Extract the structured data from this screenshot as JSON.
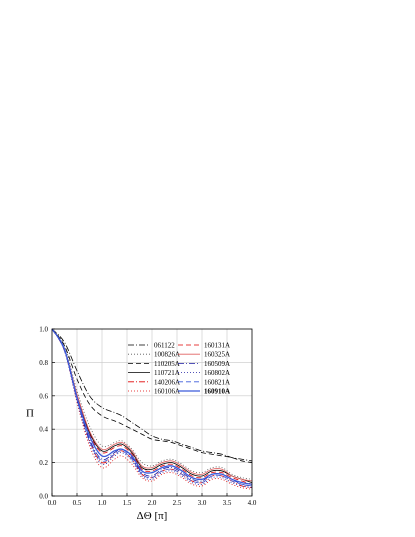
{
  "chart_data": {
    "type": "line",
    "title": "",
    "xlabel": "ΔΘ [π]",
    "ylabel": "Π",
    "xlim": [
      0.0,
      4.0
    ],
    "ylim": [
      0.0,
      1.0
    ],
    "xticks": [
      "0.0",
      "0.5",
      "1.0",
      "1.5",
      "2.0",
      "2.5",
      "3.0",
      "3.5",
      "4.0"
    ],
    "yticks": [
      "0.0",
      "0.2",
      "0.4",
      "0.6",
      "0.8",
      "1.0"
    ],
    "grid": true,
    "legend_position": "top-right",
    "x": [
      0.0,
      0.25,
      0.5,
      0.75,
      1.0,
      1.25,
      1.4,
      1.6,
      1.8,
      2.0,
      2.2,
      2.4,
      2.6,
      2.8,
      3.0,
      3.2,
      3.4,
      3.6,
      3.8,
      4.0
    ],
    "series": [
      {
        "name": "061122",
        "color": "#000000",
        "dash": "6,2,1,2",
        "values": [
          1.0,
          0.92,
          0.75,
          0.6,
          0.53,
          0.5,
          0.48,
          0.44,
          0.4,
          0.36,
          0.34,
          0.33,
          0.31,
          0.29,
          0.27,
          0.26,
          0.25,
          0.23,
          0.22,
          0.21
        ]
      },
      {
        "name": "100826A",
        "color": "#555555",
        "dash": "1,2",
        "values": [
          1.0,
          0.9,
          0.63,
          0.42,
          0.3,
          0.32,
          0.33,
          0.28,
          0.2,
          0.18,
          0.21,
          0.22,
          0.19,
          0.15,
          0.14,
          0.17,
          0.17,
          0.13,
          0.11,
          0.1
        ]
      },
      {
        "name": "110205A",
        "color": "#000000",
        "dash": "5,3",
        "values": [
          1.0,
          0.9,
          0.7,
          0.55,
          0.48,
          0.45,
          0.43,
          0.4,
          0.37,
          0.34,
          0.33,
          0.32,
          0.3,
          0.28,
          0.26,
          0.25,
          0.24,
          0.23,
          0.21,
          0.2
        ]
      },
      {
        "name": "110721A",
        "color": "#000000",
        "dash": "",
        "values": [
          1.0,
          0.88,
          0.6,
          0.38,
          0.27,
          0.3,
          0.31,
          0.26,
          0.17,
          0.16,
          0.19,
          0.2,
          0.17,
          0.13,
          0.12,
          0.15,
          0.15,
          0.12,
          0.1,
          0.08
        ]
      },
      {
        "name": "140206A",
        "color": "#e00000",
        "dash": "6,2,1,2",
        "values": [
          1.0,
          0.87,
          0.58,
          0.33,
          0.2,
          0.25,
          0.27,
          0.22,
          0.13,
          0.11,
          0.15,
          0.16,
          0.13,
          0.09,
          0.08,
          0.12,
          0.12,
          0.09,
          0.06,
          0.05
        ]
      },
      {
        "name": "160106A",
        "color": "#e00000",
        "dash": "1,2",
        "values": [
          1.0,
          0.87,
          0.56,
          0.3,
          0.17,
          0.22,
          0.24,
          0.19,
          0.11,
          0.09,
          0.13,
          0.14,
          0.11,
          0.07,
          0.06,
          0.1,
          0.1,
          0.07,
          0.05,
          0.04
        ]
      },
      {
        "name": "160131A",
        "color": "#e00000",
        "dash": "5,3",
        "values": [
          1.0,
          0.88,
          0.6,
          0.37,
          0.26,
          0.29,
          0.3,
          0.25,
          0.16,
          0.15,
          0.18,
          0.19,
          0.16,
          0.12,
          0.11,
          0.14,
          0.14,
          0.11,
          0.09,
          0.07
        ]
      },
      {
        "name": "160325A",
        "color": "#e06060",
        "dash": "",
        "values": [
          1.0,
          0.88,
          0.61,
          0.39,
          0.28,
          0.31,
          0.32,
          0.27,
          0.18,
          0.17,
          0.2,
          0.21,
          0.18,
          0.14,
          0.13,
          0.16,
          0.16,
          0.12,
          0.1,
          0.09
        ]
      },
      {
        "name": "160509A",
        "color": "#1a1aa0",
        "dash": "6,2,1,2",
        "values": [
          1.0,
          0.87,
          0.58,
          0.34,
          0.22,
          0.26,
          0.28,
          0.23,
          0.14,
          0.12,
          0.16,
          0.17,
          0.14,
          0.1,
          0.09,
          0.13,
          0.13,
          0.1,
          0.07,
          0.06
        ]
      },
      {
        "name": "160802A",
        "color": "#1a1aa0",
        "dash": "1,2",
        "values": [
          1.0,
          0.87,
          0.57,
          0.32,
          0.19,
          0.24,
          0.26,
          0.21,
          0.12,
          0.1,
          0.14,
          0.15,
          0.12,
          0.08,
          0.07,
          0.11,
          0.11,
          0.08,
          0.06,
          0.05
        ]
      },
      {
        "name": "160821A",
        "color": "#3b5bdb",
        "dash": "5,3",
        "values": [
          1.0,
          0.87,
          0.58,
          0.33,
          0.21,
          0.25,
          0.27,
          0.22,
          0.13,
          0.11,
          0.15,
          0.16,
          0.13,
          0.09,
          0.08,
          0.12,
          0.12,
          0.09,
          0.07,
          0.06
        ]
      },
      {
        "name": "160910A",
        "color": "#3b5bdb",
        "dash": "",
        "bold": true,
        "values": [
          1.0,
          0.88,
          0.59,
          0.36,
          0.24,
          0.27,
          0.28,
          0.24,
          0.15,
          0.14,
          0.17,
          0.18,
          0.15,
          0.11,
          0.1,
          0.13,
          0.13,
          0.1,
          0.08,
          0.07
        ]
      }
    ]
  }
}
